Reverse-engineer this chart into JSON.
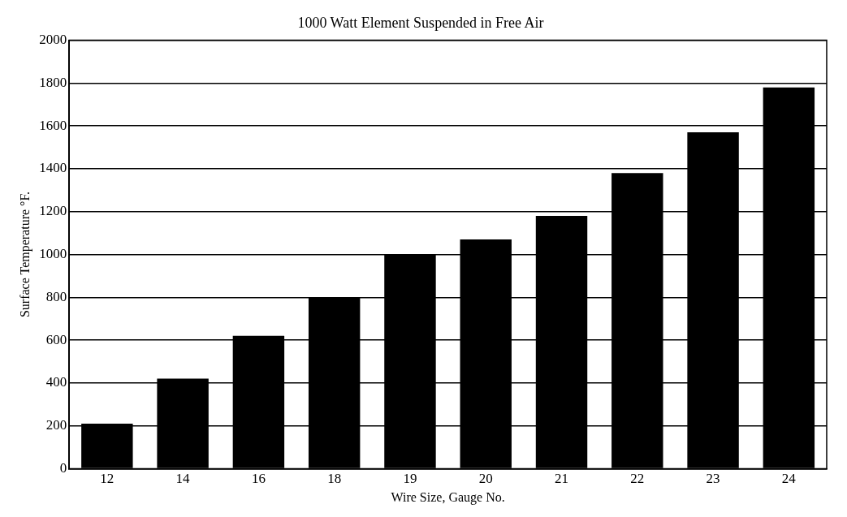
{
  "chart_data": {
    "type": "bar",
    "title": "1000 Watt Element Suspended in Free Air",
    "xlabel": "Wire Size, Gauge No.",
    "ylabel": "Surface Temperature °F.",
    "categories": [
      "12",
      "14",
      "16",
      "18",
      "19",
      "20",
      "21",
      "22",
      "23",
      "24"
    ],
    "values": [
      210,
      420,
      620,
      800,
      1000,
      1070,
      1180,
      1380,
      1570,
      1780
    ],
    "color": "#000000",
    "ylim": [
      0,
      2000
    ],
    "yticks": [
      0,
      200,
      400,
      600,
      800,
      1000,
      1200,
      1400,
      1600,
      1800,
      2000
    ],
    "grid": "y",
    "legend": false
  }
}
